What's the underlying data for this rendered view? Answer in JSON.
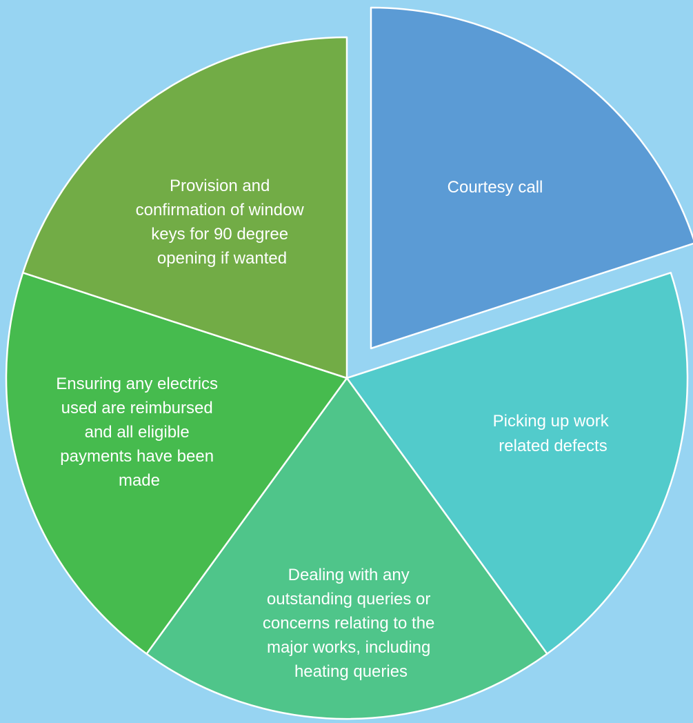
{
  "diagram": {
    "background": "#97d4f2",
    "segments": [
      {
        "id": "courtesy-call",
        "lines": [
          "Courtesy call"
        ],
        "color": "#5b9bd5",
        "exploded": true
      },
      {
        "id": "picking-up-defects",
        "lines": [
          "Picking up work",
          "related defects"
        ],
        "color": "#52cbcb",
        "exploded": false
      },
      {
        "id": "dealing-with-queries",
        "lines": [
          "Dealing with any",
          "outstanding queries or",
          "concerns relating to the",
          "major works, including",
          "heating queries"
        ],
        "color": "#4fc58a",
        "exploded": false
      },
      {
        "id": "ensuring-electrics",
        "lines": [
          "Ensuring any electrics",
          "used are reimbursed",
          "and all eligible",
          "payments have been",
          "made"
        ],
        "color": "#46bb4e",
        "exploded": false
      },
      {
        "id": "provision-window-keys",
        "lines": [
          "Provision and",
          "confirmation of window",
          "keys for 90 degree",
          "opening if wanted"
        ],
        "color": "#72ac46",
        "exploded": false
      }
    ]
  }
}
